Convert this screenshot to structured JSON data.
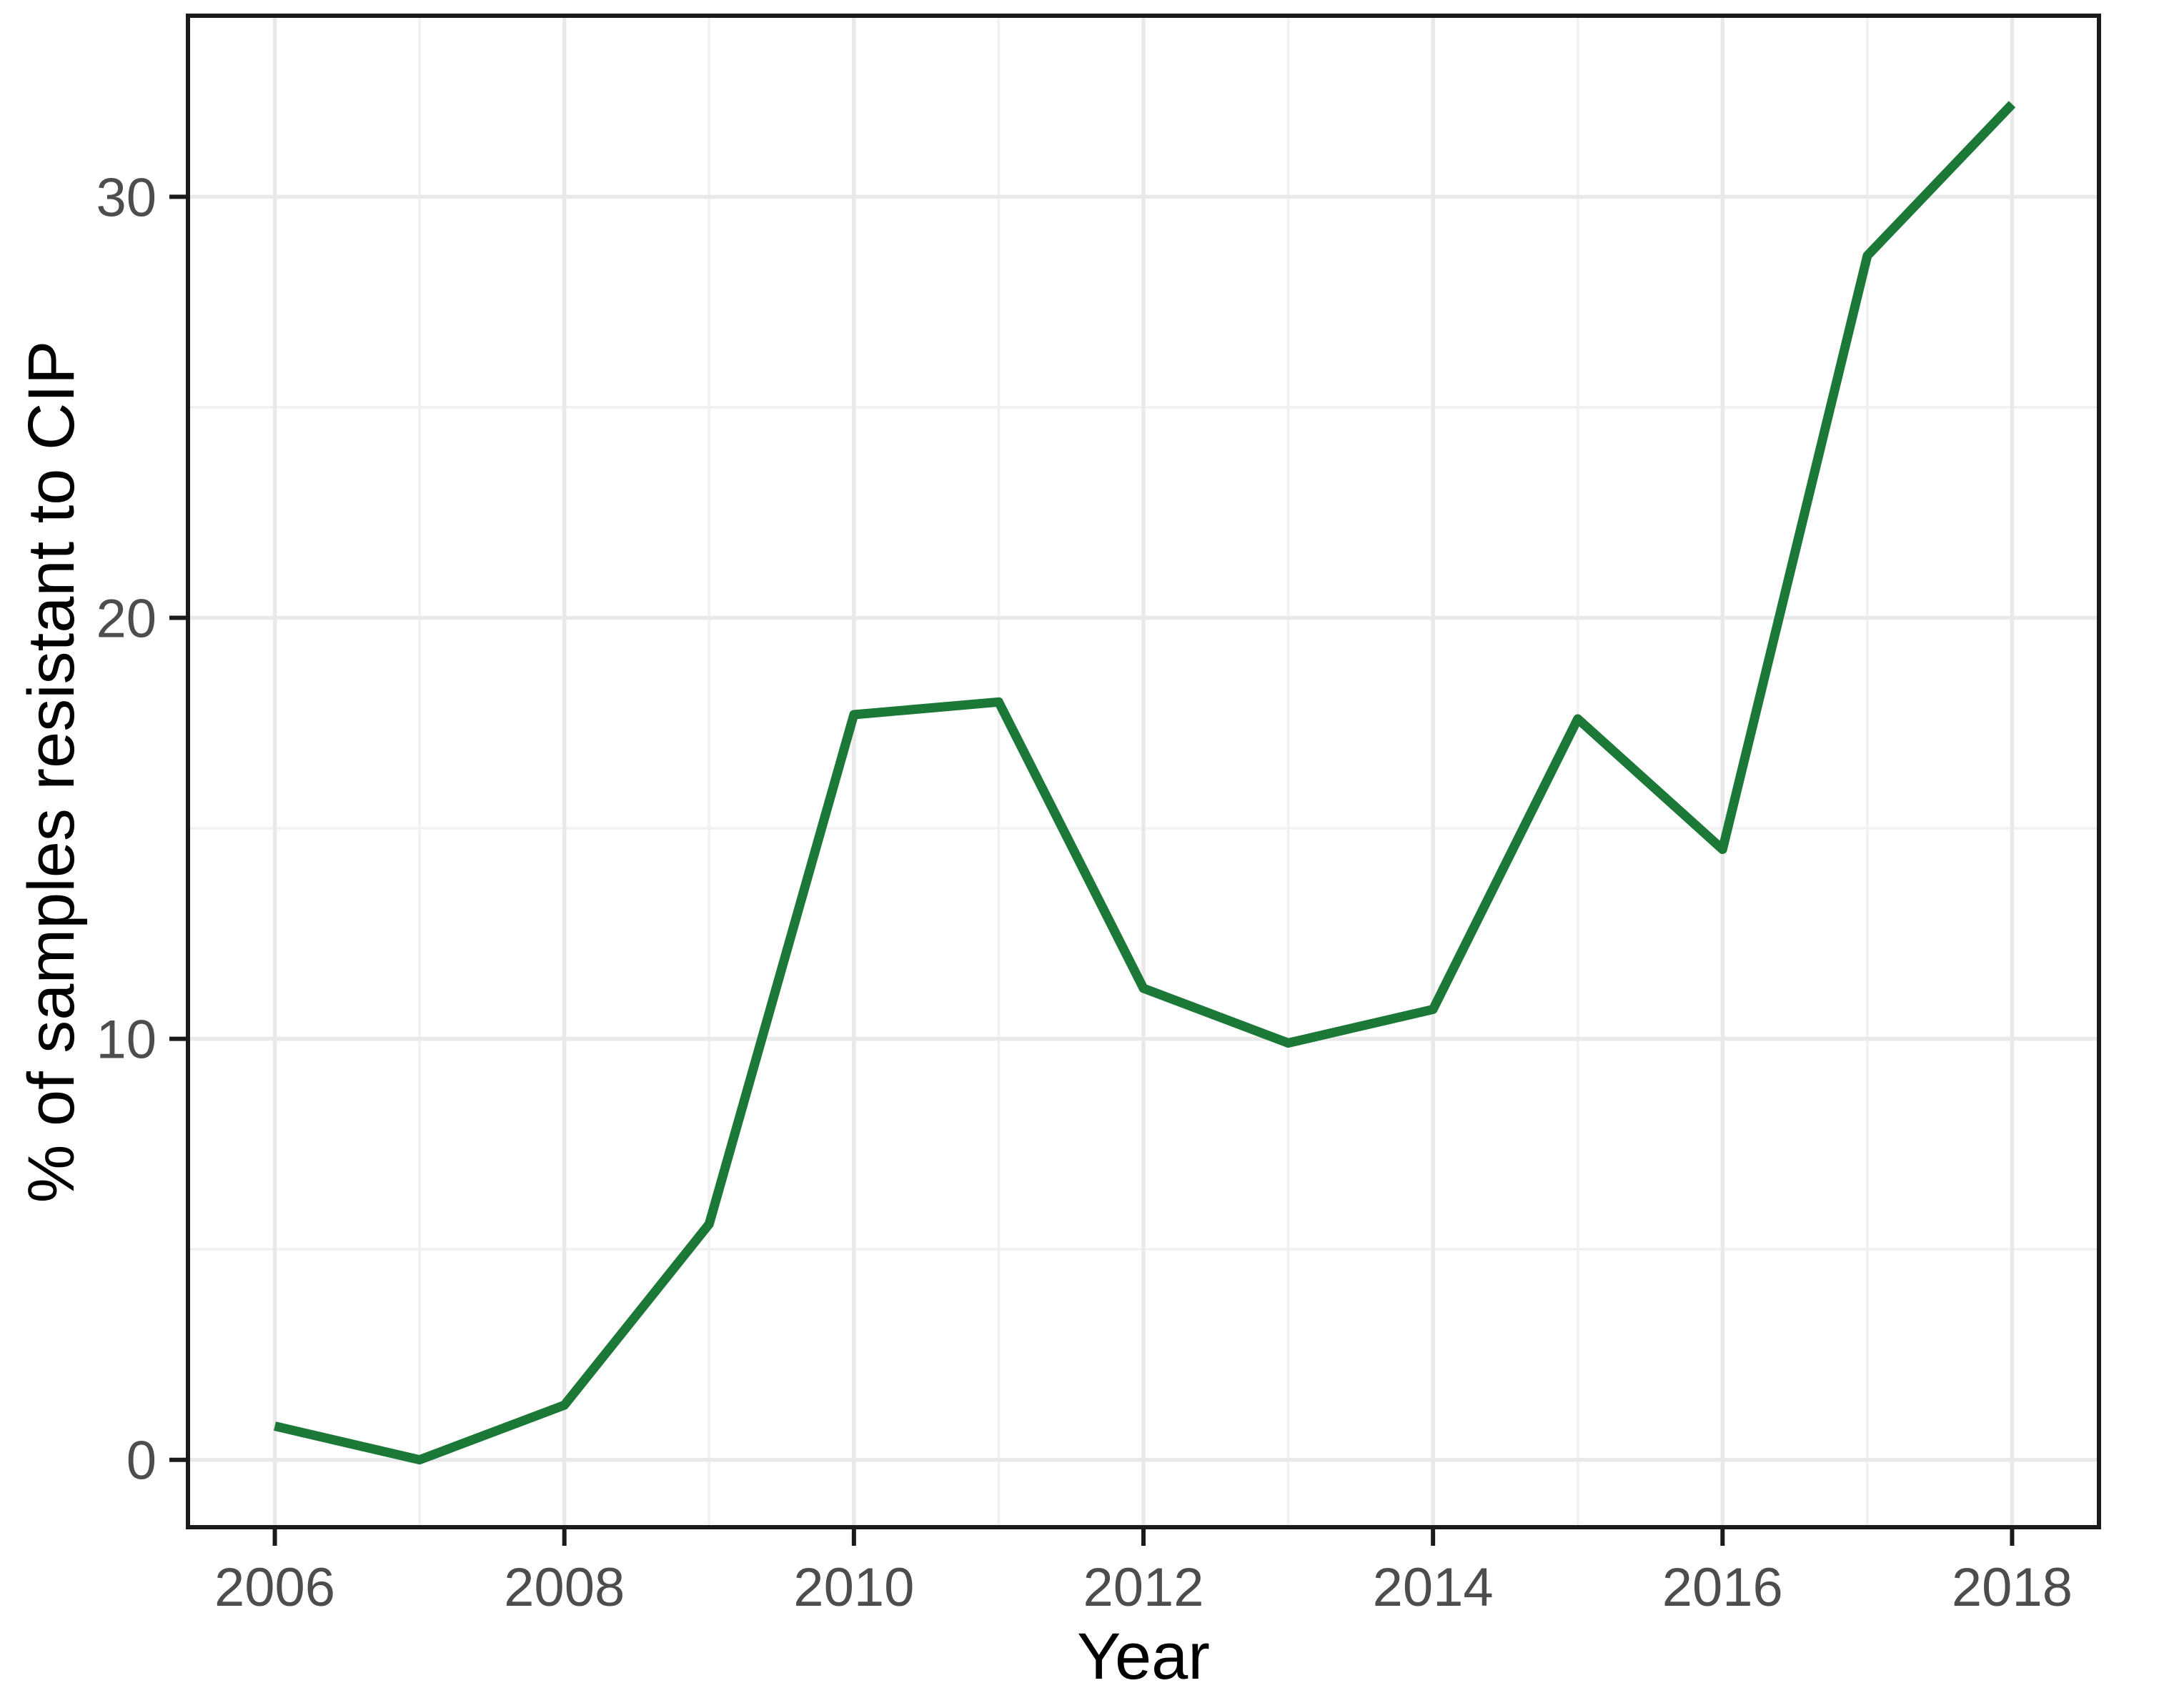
{
  "figure": {
    "background_color": "#ffffff"
  },
  "chart_data": {
    "type": "line",
    "title": "",
    "xlabel": "Year",
    "ylabel": "% of samples resistant to CIP",
    "x": [
      2006,
      2007,
      2008,
      2009,
      2010,
      2011,
      2012,
      2013,
      2014,
      2015,
      2016,
      2017,
      2018
    ],
    "values": [
      0.8,
      0.0,
      1.3,
      5.6,
      17.7,
      18.0,
      11.2,
      9.9,
      10.7,
      17.6,
      14.5,
      28.6,
      32.2
    ],
    "xlim": [
      2005.4,
      2018.6
    ],
    "ylim": [
      -1.6,
      34.3
    ],
    "x_major_ticks": [
      2006,
      2008,
      2010,
      2012,
      2014,
      2016,
      2018
    ],
    "x_tick_labels": [
      "2006",
      "2008",
      "2010",
      "2012",
      "2014",
      "2016",
      "2018"
    ],
    "x_minor_gridlines": [
      2007,
      2009,
      2011,
      2013,
      2015,
      2017
    ],
    "y_major_ticks": [
      0,
      10,
      20,
      30
    ],
    "y_tick_labels": [
      "0",
      "10",
      "20",
      "30"
    ],
    "y_minor_gridlines": [
      5,
      15,
      25
    ],
    "grid": true,
    "legend": "none",
    "colors": {
      "line": "#1b7837",
      "grid_major": "#e9e9e9",
      "grid_minor": "#f1f1f1",
      "panel_border": "#1a1a1a",
      "tick_mark": "#1a1a1a",
      "tick_label": "#4d4d4d",
      "axis_title": "#000000"
    }
  }
}
